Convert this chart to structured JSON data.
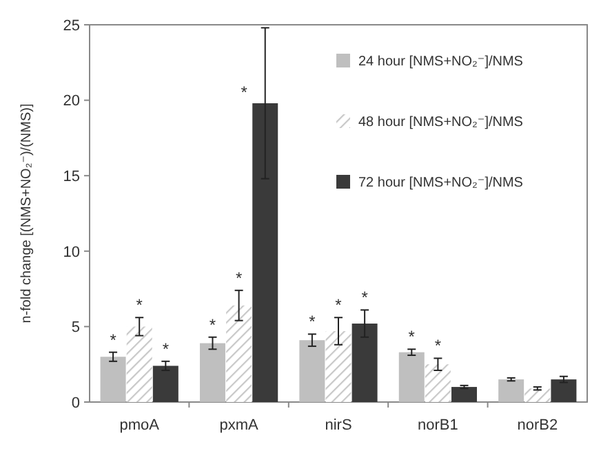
{
  "chart_data": {
    "type": "bar",
    "ylabel": "n-fold change [(NMS+NO₂⁻)/(NMS)]",
    "categories": [
      "pmoA",
      "pxmA",
      "nirS",
      "norB1",
      "norB2"
    ],
    "ylim": [
      0,
      25
    ],
    "yticks": [
      0,
      5,
      10,
      15,
      20,
      25
    ],
    "legend": "top right",
    "grid": false,
    "series": [
      {
        "name": "24 hour [NMS+NO₂⁻]/NMS",
        "color": "#bfbfbf",
        "values": [
          3.0,
          3.9,
          4.1,
          3.3,
          1.5
        ],
        "errors": [
          0.3,
          0.4,
          0.4,
          0.2,
          0.1
        ]
      },
      {
        "name": "48 hour [NMS+NO₂⁻]/NMS",
        "color": "#c8c8c8",
        "values": [
          5.0,
          6.4,
          4.7,
          2.5,
          0.9
        ],
        "errors": [
          0.6,
          1.0,
          0.9,
          0.4,
          0.1
        ]
      },
      {
        "name": "72 hour [NMS+NO₂⁻]/NMS",
        "color": "#3a3a3a",
        "values": [
          2.4,
          19.8,
          5.2,
          1.0,
          1.5
        ],
        "errors": [
          0.3,
          5.0,
          0.9,
          0.1,
          0.2
        ]
      }
    ],
    "annotations": [
      "*",
      "*",
      "*",
      "*",
      "*",
      "*",
      "*",
      "*",
      "*",
      "*",
      "*"
    ]
  }
}
